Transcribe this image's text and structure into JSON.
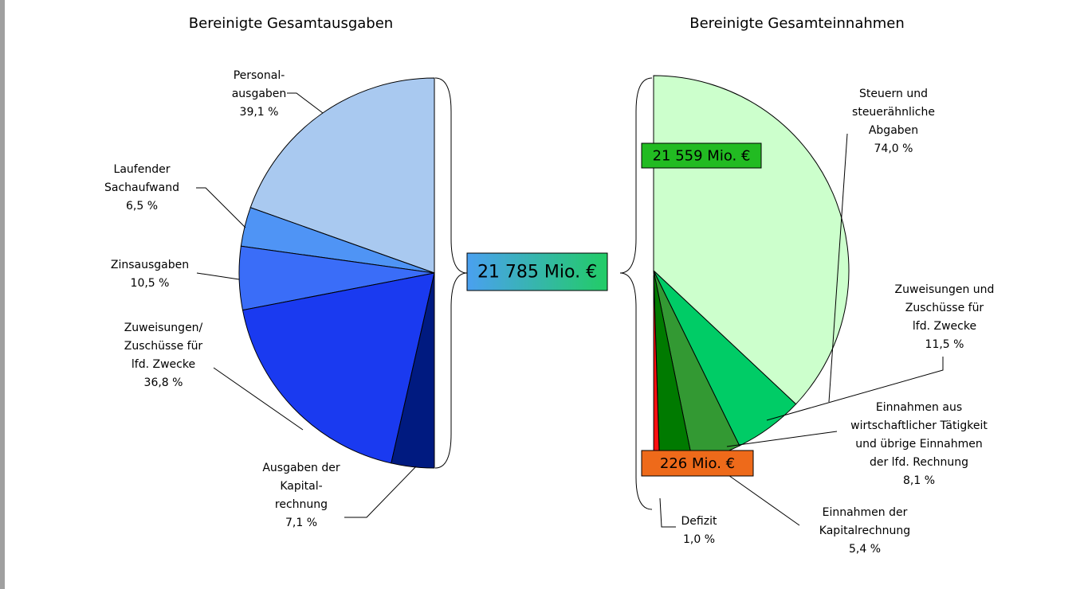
{
  "chart_data": [
    {
      "type": "pie",
      "title": "Bereinigte Gesamtausgaben",
      "categories": [
        [
          "Personal-",
          "ausgaben"
        ],
        [
          "Laufender",
          "Sachaufwand"
        ],
        [
          "Zinsausgaben"
        ],
        [
          "Zuweisungen/",
          "Zuschüsse für",
          "lfd. Zwecke"
        ],
        [
          "Ausgaben der",
          "Kapital-",
          "rechnung"
        ]
      ],
      "values": [
        39.1,
        6.5,
        10.5,
        36.8,
        7.1
      ],
      "value_labels": [
        "39,1 %",
        "6,5 %",
        "10,5 %",
        "36,8 %",
        "7,1 %"
      ],
      "colors": [
        "#a9c9f0",
        "#4f94f5",
        "#3a6df8",
        "#1a3af0",
        "#001a80"
      ],
      "annotations": [
        "21 785 Mio. €"
      ]
    },
    {
      "type": "pie",
      "title": "Bereinigte Gesamteinnahmen",
      "categories": [
        [
          "Steuern und",
          "steuerähnliche",
          "Abgaben"
        ],
        [
          "Zuweisungen und",
          "Zuschüsse für",
          "lfd. Zwecke"
        ],
        [
          "Einnahmen aus",
          "wirtschaftlicher Tätigkeit",
          "und übrige Einnahmen",
          "der lfd. Rechnung"
        ],
        [
          "Einnahmen der",
          "Kapitalrechnung"
        ],
        [
          "Defizit"
        ]
      ],
      "values": [
        74.0,
        11.5,
        8.1,
        5.4,
        1.0
      ],
      "value_labels": [
        "74,0 %",
        "11,5 %",
        "8,1 %",
        "5,4 %",
        "1,0 %"
      ],
      "colors": [
        "#ccffcc",
        "#00cc66",
        "#339933",
        "#007a00",
        "#ff1010"
      ],
      "annotations": [
        "21 559 Mio. €",
        "226 Mio. €"
      ]
    }
  ]
}
